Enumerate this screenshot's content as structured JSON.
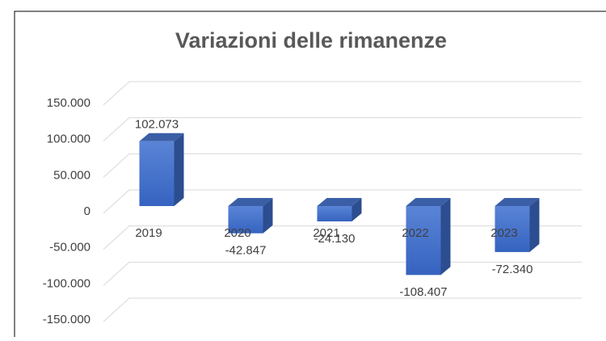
{
  "chart_data": {
    "type": "bar3d",
    "title": "Variazioni delle rimanenze",
    "categories": [
      "2019",
      "2020",
      "2021",
      "2022",
      "2023"
    ],
    "values": [
      102073,
      -42847,
      -24130,
      -108407,
      -72340
    ],
    "value_labels": [
      "102.073",
      "-42.847",
      "-24.130",
      "-108.407",
      "-72.340"
    ],
    "color": "#4472c4",
    "ylim": [
      -150000,
      150000
    ],
    "yticks": [
      {
        "value": -150000,
        "label": "-150.000"
      },
      {
        "value": -100000,
        "label": "-100.000"
      },
      {
        "value": -50000,
        "label": "-50.000"
      },
      0,
      {
        "value": 50000,
        "label": "50.000"
      },
      {
        "value": 100000,
        "label": "100.000"
      },
      {
        "value": 150000,
        "label": "150.000"
      }
    ],
    "grid": true
  }
}
